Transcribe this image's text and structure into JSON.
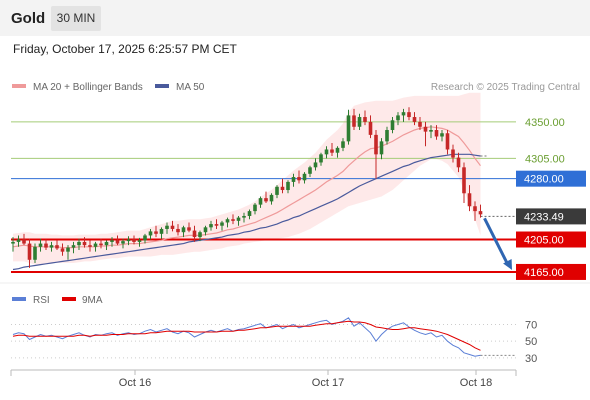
{
  "header": {
    "title": "Gold",
    "timeframe": "30 MIN",
    "datetime": "Friday, October 17, 2025 6:25:57 PM CET"
  },
  "legend": {
    "bollinger": "MA 20 + Bollinger Bands",
    "ma50": "MA 50",
    "copyright": "Research © 2025 Trading Central"
  },
  "rsi_legend": {
    "rsi": "RSI",
    "ma": "9MA"
  },
  "colors": {
    "up": "#2e7d32",
    "down": "#c62828",
    "ma20": "#ef9a9a",
    "band": "#fde2e2",
    "ma50": "#4a5a9c",
    "green_line": "#a4cc78",
    "blue_line": "#2f6fd6",
    "red_line": "#e00000",
    "rsi": "#5b7fd6",
    "rsi_ma": "#e00000",
    "arrow": "#2f66b2"
  },
  "chart_data": [
    {
      "type": "candlestick",
      "x_ticks": [
        "Oct 16",
        "Oct 17",
        "Oct 18"
      ],
      "levels": [
        {
          "value": 4350.0,
          "label": "4350.00",
          "style": "green"
        },
        {
          "value": 4305.0,
          "label": "4305.00",
          "style": "green"
        },
        {
          "value": 4280.0,
          "label": "4280.00",
          "style": "blue"
        },
        {
          "value": 4233.49,
          "label": "4233.49",
          "style": "current"
        },
        {
          "value": 4205.0,
          "label": "4205.00",
          "style": "red"
        },
        {
          "value": 4165.0,
          "label": "4165.00",
          "style": "red"
        }
      ],
      "ohlc": [
        [
          4200,
          4208,
          4190,
          4202
        ],
        [
          4202,
          4210,
          4196,
          4205
        ],
        [
          4205,
          4212,
          4198,
          4200
        ],
        [
          4200,
          4206,
          4170,
          4180
        ],
        [
          4180,
          4200,
          4176,
          4196
        ],
        [
          4196,
          4206,
          4190,
          4200
        ],
        [
          4200,
          4205,
          4192,
          4195
        ],
        [
          4195,
          4202,
          4190,
          4198
        ],
        [
          4198,
          4204,
          4192,
          4194
        ],
        [
          4194,
          4200,
          4185,
          4190
        ],
        [
          4190,
          4198,
          4180,
          4195
        ],
        [
          4195,
          4202,
          4188,
          4198
        ],
        [
          4198,
          4206,
          4192,
          4202
        ],
        [
          4202,
          4208,
          4195,
          4198
        ],
        [
          4198,
          4204,
          4190,
          4196
        ],
        [
          4196,
          4202,
          4190,
          4200
        ],
        [
          4200,
          4206,
          4194,
          4198
        ],
        [
          4198,
          4204,
          4192,
          4202
        ],
        [
          4202,
          4208,
          4196,
          4204
        ],
        [
          4204,
          4210,
          4198,
          4200
        ],
        [
          4200,
          4206,
          4194,
          4203
        ],
        [
          4203,
          4209,
          4198,
          4205
        ],
        [
          4205,
          4210,
          4199,
          4202
        ],
        [
          4202,
          4207,
          4196,
          4204
        ],
        [
          4204,
          4212,
          4200,
          4210
        ],
        [
          4210,
          4218,
          4205,
          4215
        ],
        [
          4215,
          4222,
          4208,
          4212
        ],
        [
          4212,
          4220,
          4206,
          4218
        ],
        [
          4218,
          4226,
          4212,
          4222
        ],
        [
          4222,
          4228,
          4215,
          4218
        ],
        [
          4218,
          4224,
          4210,
          4214
        ],
        [
          4214,
          4222,
          4208,
          4220
        ],
        [
          4220,
          4226,
          4214,
          4216
        ],
        [
          4216,
          4222,
          4202,
          4208
        ],
        [
          4208,
          4216,
          4203,
          4214
        ],
        [
          4214,
          4222,
          4210,
          4220
        ],
        [
          4220,
          4228,
          4216,
          4224
        ],
        [
          4224,
          4230,
          4218,
          4222
        ],
        [
          4222,
          4228,
          4216,
          4226
        ],
        [
          4226,
          4232,
          4220,
          4230
        ],
        [
          4230,
          4236,
          4224,
          4228
        ],
        [
          4228,
          4234,
          4222,
          4232
        ],
        [
          4232,
          4238,
          4226,
          4234
        ],
        [
          4234,
          4242,
          4230,
          4240
        ],
        [
          4240,
          4250,
          4236,
          4248
        ],
        [
          4248,
          4258,
          4244,
          4256
        ],
        [
          4256,
          4264,
          4250,
          4252
        ],
        [
          4252,
          4262,
          4248,
          4260
        ],
        [
          4260,
          4272,
          4256,
          4270
        ],
        [
          4270,
          4280,
          4262,
          4266
        ],
        [
          4266,
          4278,
          4262,
          4276
        ],
        [
          4276,
          4286,
          4270,
          4282
        ],
        [
          4282,
          4290,
          4274,
          4278
        ],
        [
          4278,
          4288,
          4274,
          4286
        ],
        [
          4286,
          4296,
          4282,
          4294
        ],
        [
          4294,
          4305,
          4290,
          4300
        ],
        [
          4300,
          4312,
          4296,
          4310
        ],
        [
          4310,
          4320,
          4305,
          4316
        ],
        [
          4316,
          4324,
          4308,
          4312
        ],
        [
          4312,
          4320,
          4306,
          4318
        ],
        [
          4318,
          4330,
          4314,
          4326
        ],
        [
          4326,
          4365,
          4322,
          4358
        ],
        [
          4358,
          4366,
          4340,
          4344
        ],
        [
          4344,
          4360,
          4340,
          4356
        ],
        [
          4356,
          4364,
          4346,
          4350
        ],
        [
          4350,
          4358,
          4330,
          4334
        ],
        [
          4334,
          4340,
          4280,
          4310
        ],
        [
          4310,
          4330,
          4304,
          4326
        ],
        [
          4326,
          4344,
          4322,
          4340
        ],
        [
          4340,
          4356,
          4336,
          4352
        ],
        [
          4352,
          4362,
          4346,
          4358
        ],
        [
          4358,
          4366,
          4350,
          4362
        ],
        [
          4362,
          4368,
          4352,
          4356
        ],
        [
          4356,
          4362,
          4346,
          4350
        ],
        [
          4350,
          4356,
          4340,
          4344
        ],
        [
          4344,
          4350,
          4320,
          4338
        ],
        [
          4338,
          4346,
          4330,
          4340
        ],
        [
          4340,
          4346,
          4328,
          4332
        ],
        [
          4332,
          4340,
          4326,
          4336
        ],
        [
          4336,
          4340,
          4310,
          4316
        ],
        [
          4316,
          4322,
          4300,
          4306
        ],
        [
          4306,
          4312,
          4288,
          4294
        ],
        [
          4294,
          4300,
          4250,
          4262
        ],
        [
          4262,
          4272,
          4240,
          4246
        ],
        [
          4246,
          4252,
          4228,
          4240
        ],
        [
          4240,
          4248,
          4232,
          4236
        ]
      ],
      "ma20": [
        4196,
        4197,
        4198,
        4197,
        4196,
        4196,
        4196,
        4196,
        4196,
        4195,
        4195,
        4195,
        4196,
        4196,
        4196,
        4196,
        4197,
        4197,
        4198,
        4198,
        4199,
        4200,
        4200,
        4200,
        4201,
        4202,
        4203,
        4204,
        4206,
        4207,
        4208,
        4209,
        4210,
        4210,
        4210,
        4211,
        4212,
        4213,
        4215,
        4217,
        4218,
        4220,
        4222,
        4224,
        4226,
        4229,
        4232,
        4235,
        4238,
        4242,
        4246,
        4250,
        4254,
        4258,
        4262,
        4266,
        4271,
        4276,
        4280,
        4284,
        4289,
        4296,
        4302,
        4308,
        4313,
        4317,
        4318,
        4320,
        4323,
        4326,
        4330,
        4334,
        4337,
        4340,
        4342,
        4343,
        4344,
        4343,
        4342,
        4340,
        4336,
        4332,
        4324,
        4315,
        4305,
        4296
      ],
      "band_upper": [
        4212,
        4213,
        4214,
        4214,
        4212,
        4212,
        4212,
        4211,
        4211,
        4210,
        4210,
        4210,
        4211,
        4211,
        4211,
        4211,
        4212,
        4212,
        4213,
        4214,
        4215,
        4216,
        4216,
        4216,
        4218,
        4220,
        4222,
        4224,
        4226,
        4228,
        4228,
        4229,
        4230,
        4230,
        4230,
        4231,
        4232,
        4234,
        4236,
        4238,
        4240,
        4242,
        4245,
        4248,
        4252,
        4257,
        4262,
        4266,
        4272,
        4278,
        4284,
        4290,
        4295,
        4300,
        4306,
        4312,
        4320,
        4328,
        4334,
        4340,
        4348,
        4362,
        4370,
        4372,
        4374,
        4375,
        4376,
        4376,
        4376,
        4376,
        4378,
        4380,
        4381,
        4382,
        4382,
        4382,
        4382,
        4382,
        4382,
        4382,
        4382,
        4382,
        4384,
        4386,
        4386,
        4386
      ],
      "band_lower": [
        4178,
        4178,
        4178,
        4176,
        4174,
        4174,
        4175,
        4176,
        4176,
        4176,
        4176,
        4176,
        4177,
        4178,
        4178,
        4179,
        4180,
        4181,
        4182,
        4182,
        4183,
        4184,
        4184,
        4184,
        4184,
        4184,
        4185,
        4186,
        4186,
        4186,
        4187,
        4188,
        4189,
        4190,
        4190,
        4191,
        4192,
        4193,
        4194,
        4196,
        4197,
        4198,
        4200,
        4201,
        4202,
        4203,
        4204,
        4205,
        4206,
        4207,
        4208,
        4210,
        4212,
        4215,
        4218,
        4222,
        4226,
        4230,
        4234,
        4238,
        4242,
        4246,
        4248,
        4250,
        4252,
        4254,
        4256,
        4258,
        4262,
        4266,
        4272,
        4278,
        4284,
        4290,
        4296,
        4300,
        4304,
        4304,
        4302,
        4298,
        4290,
        4282,
        4266,
        4248,
        4230,
        4210
      ],
      "ma50": [
        4168,
        4169,
        4171,
        4172,
        4173,
        4174,
        4175,
        4176,
        4177,
        4178,
        4179,
        4180,
        4181,
        4182,
        4183,
        4184,
        4185,
        4186,
        4187,
        4188,
        4189,
        4190,
        4191,
        4192,
        4193,
        4194,
        4195,
        4196,
        4197,
        4198,
        4199,
        4200,
        4202,
        4203,
        4204,
        4205,
        4206,
        4207,
        4208,
        4210,
        4211,
        4212,
        4214,
        4215,
        4217,
        4219,
        4220,
        4222,
        4224,
        4227,
        4229,
        4232,
        4234,
        4237,
        4240,
        4243,
        4246,
        4249,
        4252,
        4255,
        4259,
        4263,
        4267,
        4271,
        4274,
        4277,
        4280,
        4283,
        4286,
        4289,
        4292,
        4295,
        4297,
        4300,
        4302,
        4304,
        4306,
        4307,
        4308,
        4309,
        4310,
        4310,
        4310,
        4310,
        4309,
        4308
      ],
      "forecast_target": 4165.0
    },
    {
      "type": "line",
      "name": "RSI",
      "y_ticks": [
        70,
        50,
        30
      ],
      "rsi": [
        58,
        60,
        59,
        52,
        55,
        58,
        56,
        57,
        55,
        53,
        56,
        58,
        60,
        57,
        55,
        58,
        57,
        59,
        60,
        57,
        59,
        60,
        58,
        59,
        62,
        64,
        61,
        63,
        65,
        61,
        59,
        62,
        60,
        55,
        58,
        61,
        63,
        61,
        63,
        65,
        62,
        64,
        65,
        67,
        69,
        71,
        66,
        68,
        70,
        65,
        68,
        70,
        66,
        68,
        70,
        72,
        74,
        75,
        70,
        72,
        74,
        78,
        68,
        72,
        66,
        60,
        50,
        58,
        64,
        68,
        70,
        72,
        67,
        63,
        60,
        58,
        60,
        55,
        57,
        50,
        45,
        42,
        36,
        34,
        32,
        33
      ],
      "ma9": [
        56,
        57,
        57,
        56,
        56,
        56,
        56,
        56,
        56,
        56,
        56,
        56,
        57,
        57,
        56,
        57,
        57,
        57,
        58,
        58,
        58,
        59,
        59,
        59,
        59,
        60,
        60,
        61,
        62,
        62,
        62,
        62,
        62,
        61,
        61,
        61,
        61,
        61,
        62,
        62,
        62,
        63,
        63,
        64,
        65,
        66,
        66,
        67,
        68,
        68,
        68,
        68,
        68,
        68,
        68,
        69,
        70,
        71,
        71,
        72,
        73,
        74,
        73,
        73,
        72,
        70,
        67,
        66,
        65,
        64,
        64,
        65,
        66,
        66,
        65,
        64,
        63,
        62,
        60,
        58,
        55,
        52,
        49,
        46,
        42,
        39
      ]
    }
  ]
}
